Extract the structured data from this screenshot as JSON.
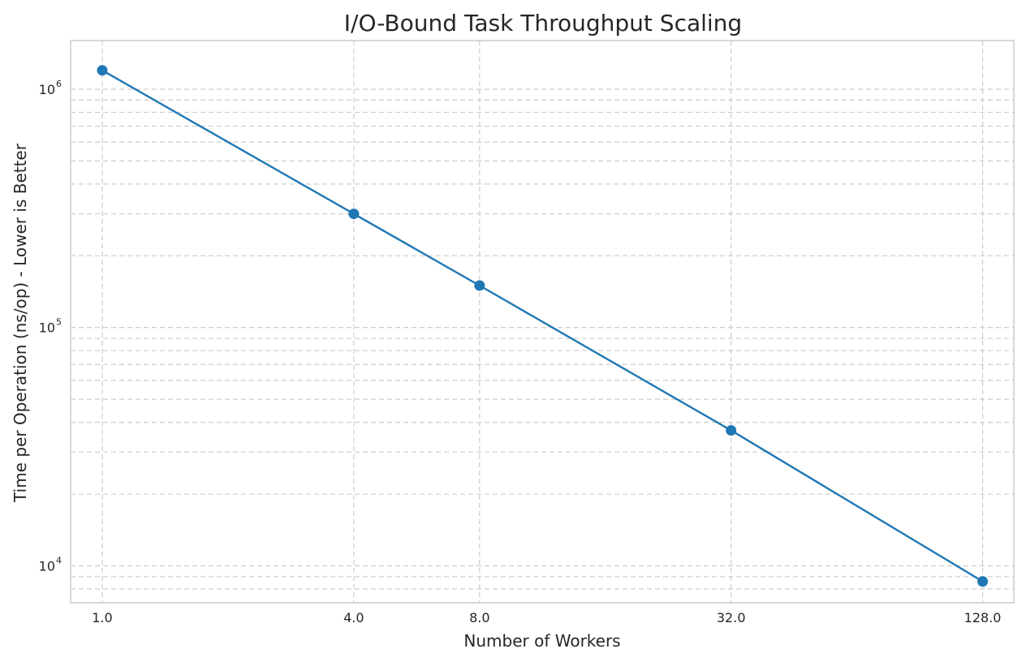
{
  "chart_data": {
    "type": "line",
    "title": "I/O-Bound Task Throughput Scaling",
    "xlabel": "Number of Workers",
    "ylabel": "Time per Operation (ns/op) - Lower is Better",
    "x_scale": "log2",
    "y_scale": "log10",
    "x_ticks": [
      1,
      4,
      8,
      32,
      128
    ],
    "x_tick_labels": [
      "1.0",
      "4.0",
      "8.0",
      "32.0",
      "128.0"
    ],
    "y_ticks": [
      10000,
      100000,
      1000000
    ],
    "y_tick_labels": [
      {
        "base": "10",
        "exp": "4"
      },
      {
        "base": "10",
        "exp": "5"
      },
      {
        "base": "10",
        "exp": "6"
      }
    ],
    "xlim": [
      0.84,
      152
    ],
    "ylim": [
      7000,
      1600000
    ],
    "grid": true,
    "legend": "none",
    "series": [
      {
        "color": "#1f77b4",
        "x": [
          1,
          4,
          8,
          32,
          128
        ],
        "y": [
          1200000,
          300000,
          150000,
          37000,
          8600
        ]
      }
    ]
  },
  "colors": {
    "line": "#1f77b4",
    "grid": "#cccccc",
    "frame": "#cccccc",
    "text": "#262626"
  }
}
